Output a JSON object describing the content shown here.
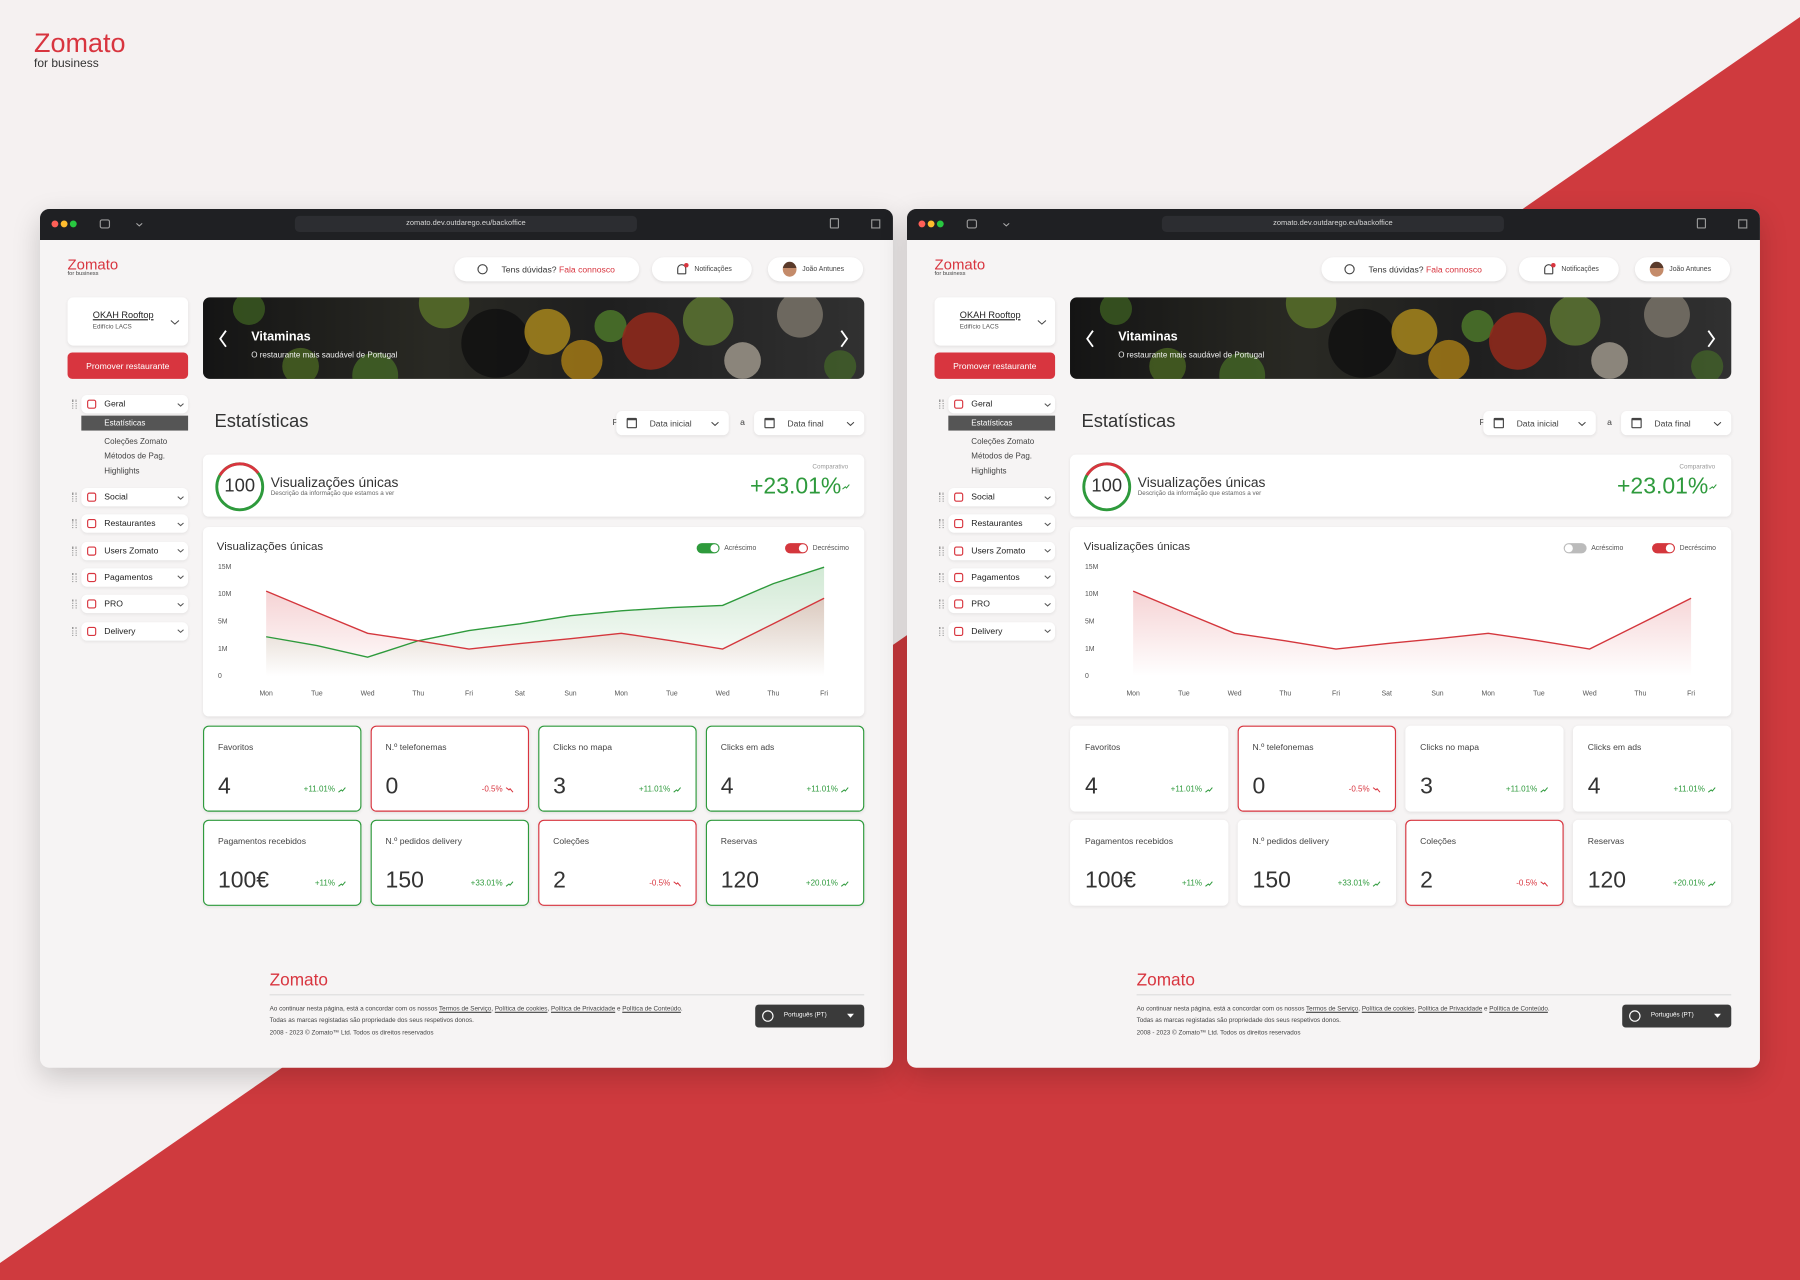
{
  "brand": {
    "name": "Zomato",
    "tagline": "for business"
  },
  "browser": {
    "url": "zomato.dev.outdarego.eu/backoffice"
  },
  "header": {
    "help_question": "Tens dúvidas?",
    "help_link": "Fala connosco",
    "notifications": "Notificações",
    "user": "João Antunes"
  },
  "restaurant": {
    "name": "OKAH Rooftop",
    "address": "Edifício LACS",
    "promote": "Promover restaurante"
  },
  "banner": {
    "title": "Vitaminas",
    "subtitle": "O restaurante mais saudável de Portugal"
  },
  "menu": [
    {
      "label": "Geral",
      "items": [
        "Estatísticas",
        "Coleções Zomato",
        "Métodos de Pag.",
        "Highlights"
      ],
      "active_item": 0
    },
    {
      "label": "Social"
    },
    {
      "label": "Restaurantes"
    },
    {
      "label": "Users Zomato"
    },
    {
      "label": "Pagamentos"
    },
    {
      "label": "PRO"
    },
    {
      "label": "Delivery"
    }
  ],
  "page": {
    "title": "Estatísticas",
    "period_label": "Período:",
    "start": "Data inicial",
    "separator": "a",
    "end": "Data final"
  },
  "summary": {
    "value": 100,
    "title": "Visualizações únicas",
    "description": "Descrição da informação que estamos a ver",
    "comparison_label": "Comparativo",
    "change": 23.01,
    "change_label": "+23.01%"
  },
  "chart_data": {
    "type": "line",
    "title": "Visualizações únicas",
    "categories": [
      "Mon",
      "Tue",
      "Wed",
      "Thu",
      "Fri",
      "Sat",
      "Sun",
      "Mon",
      "Tue",
      "Wed",
      "Thu",
      "Fri"
    ],
    "series": [
      {
        "name": "Acréscimo",
        "color": "#2e9a3c",
        "values": [
          2800000,
          1500000,
          700000,
          2200000,
          3700000,
          4700000,
          6100000,
          7000000,
          7600000,
          8000000,
          12000000,
          15000000
        ]
      },
      {
        "name": "Decréscimo",
        "color": "#d4373d",
        "values": [
          10600000,
          6700000,
          3300000,
          2200000,
          1000000,
          1800000,
          2500000,
          3300000,
          2200000,
          1000000,
          4700000,
          9300000
        ]
      }
    ],
    "ylim": [
      0,
      15000000
    ],
    "yticks": [
      0,
      {
        "value": 1000000,
        "label": "1M"
      },
      {
        "value": 5000000,
        "label": "5M"
      },
      {
        "value": 10000000,
        "label": "10M"
      },
      {
        "value": 15000000,
        "label": "15M"
      }
    ],
    "grid": false
  },
  "metrics": [
    {
      "label": "Favoritos",
      "value": 4,
      "change": 11.01,
      "change_label": "+11.01%"
    },
    {
      "label": "N.º telefonemas",
      "value": 0,
      "change": -0.5,
      "change_label": "-0.5%"
    },
    {
      "label": "Clicks no mapa",
      "value": 3,
      "change": 11.01,
      "change_label": "+11.01%"
    },
    {
      "label": "Clicks em ads",
      "value": 4,
      "change": 11.01,
      "change_label": "+11.01%"
    },
    {
      "label": "Pagamentos recebidos",
      "value": 100,
      "value_label": "100€",
      "change": 11,
      "change_label": "+11%"
    },
    {
      "label": "N.º pedidos delivery",
      "value": 150,
      "change": 33.01,
      "change_label": "+33.01%"
    },
    {
      "label": "Coleções",
      "value": 2,
      "change": -0.5,
      "change_label": "-0.5%"
    },
    {
      "label": "Reservas",
      "value": 120,
      "change": 20.01,
      "change_label": "+20.01%"
    }
  ],
  "footer": {
    "brand": "Zomato",
    "consent": [
      {
        "text": "Ao continuar nesta página, está a concordar com os nossos "
      },
      {
        "text": "Termos de Serviço",
        "link": true
      },
      {
        "text": ", "
      },
      {
        "text": "Política de cookies",
        "link": true
      },
      {
        "text": ", "
      },
      {
        "text": "Política de Privacidade",
        "link": true
      },
      {
        "text": " e "
      },
      {
        "text": "Política de Conteúdo",
        "link": true
      },
      {
        "text": "."
      }
    ],
    "trademarks": "Todas as marcas registadas são propriedade dos seus respetivos donos.",
    "copyright": "2008 - 2023 © Zomato™ Ltd. Todos os direitos reservados",
    "language": "Português (PT)"
  },
  "windows": [
    {
      "series_visible": [
        true,
        true
      ],
      "border_all": true
    },
    {
      "series_visible": [
        false,
        true
      ],
      "border_all": false
    }
  ]
}
